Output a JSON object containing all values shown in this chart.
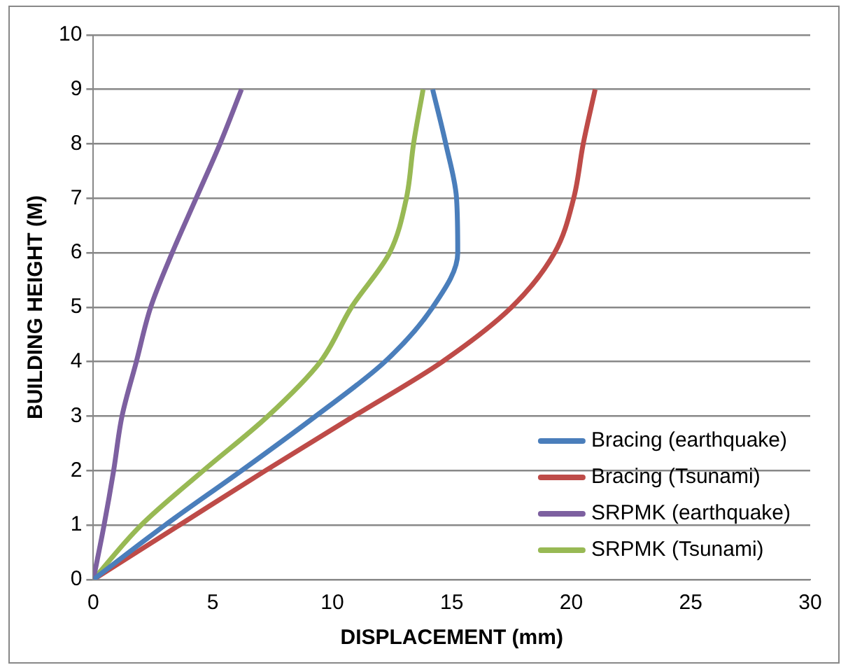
{
  "chart_data": {
    "type": "line",
    "xlabel": "DISPLACEMENT (mm)",
    "ylabel": "BUILDING HEIGHT (M)",
    "xlim": [
      0,
      30
    ],
    "xticks": [
      0,
      5,
      10,
      15,
      20,
      25,
      30
    ],
    "ylim": [
      0,
      10
    ],
    "yticks": [
      0,
      1,
      2,
      3,
      4,
      5,
      6,
      7,
      8,
      9,
      10
    ],
    "grid": "y",
    "legend": "bottom right",
    "marker": "none",
    "line_style": "solid",
    "series": [
      {
        "name": "Bracing (earthquake)",
        "color": "#4a7ebb",
        "x": [
          0,
          3.0,
          6.2,
          9.3,
          12.2,
          14.2,
          15.25,
          15.2,
          14.75,
          14.2
        ],
        "values": [
          0,
          1,
          2,
          3,
          4,
          5,
          6,
          7,
          8,
          9
        ]
      },
      {
        "name": "Bracing (Tsunami)",
        "color": "#be4b48",
        "x": [
          0,
          3.6,
          7.2,
          10.9,
          14.6,
          17.5,
          19.3,
          20.1,
          20.5,
          21.0
        ],
        "values": [
          0,
          1,
          2,
          3,
          4,
          5,
          6,
          7,
          8,
          9
        ]
      },
      {
        "name": "SRPMK (earthquake)",
        "color": "#7d60a0",
        "x": [
          0,
          0.45,
          0.85,
          1.2,
          1.8,
          2.4,
          3.3,
          4.3,
          5.3,
          6.2
        ],
        "values": [
          0,
          1,
          2,
          3,
          4,
          5,
          6,
          7,
          8,
          9
        ]
      },
      {
        "name": "SRPMK (Tsunami)",
        "color": "#98b954",
        "x": [
          0,
          2.0,
          4.6,
          7.3,
          9.5,
          10.8,
          12.4,
          13.1,
          13.4,
          13.8
        ],
        "values": [
          0,
          1,
          2,
          3,
          4,
          5,
          6,
          7,
          8,
          9
        ]
      }
    ]
  }
}
